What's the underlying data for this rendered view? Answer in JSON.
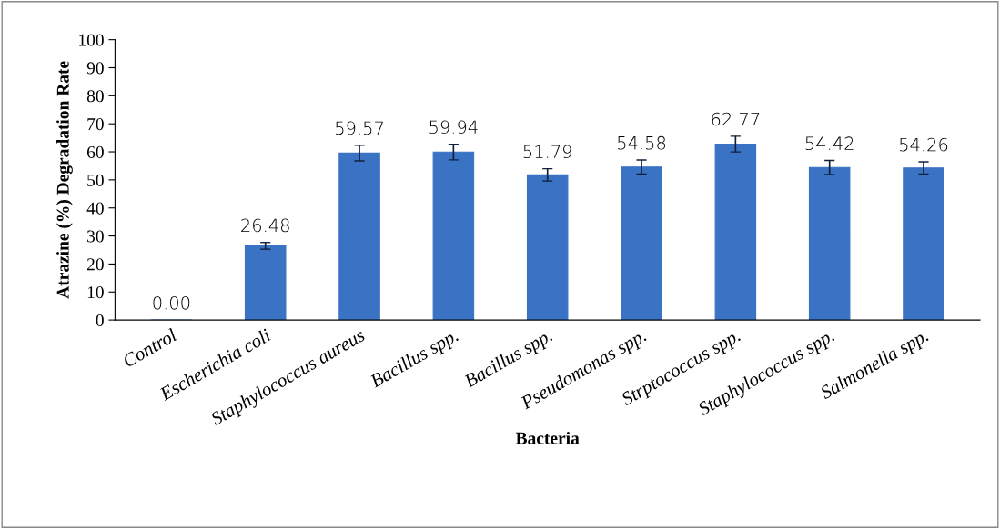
{
  "chart_data": {
    "type": "bar",
    "xlabel": "Bacteria",
    "ylabel": "Atrazine (%) Degradation Rate",
    "categories": [
      "Control",
      "Escherichia coli",
      "Staphylococcus aureus",
      "Bacillus spp.",
      "Bacillus spp.",
      "Pseudomonas spp.",
      "Strptococcus spp.",
      "Staphylococcus spp.",
      "Salmonella spp."
    ],
    "values": [
      0.0,
      26.48,
      59.57,
      59.94,
      51.79,
      54.58,
      62.77,
      54.42,
      54.26
    ],
    "errors": [
      null,
      1.2,
      2.8,
      2.8,
      2.2,
      2.5,
      2.8,
      2.5,
      2.2
    ],
    "value_labels": [
      "0.00",
      "26.48",
      "59.57",
      "59.94",
      "51.79",
      "54.58",
      "62.77",
      "54.42",
      "54.26"
    ],
    "color": "#3a72c4",
    "ylim": [
      0,
      100
    ],
    "yticks": [
      0,
      10,
      20,
      30,
      40,
      50,
      60,
      70,
      80,
      90,
      100
    ],
    "grid": false,
    "legend": false
  }
}
